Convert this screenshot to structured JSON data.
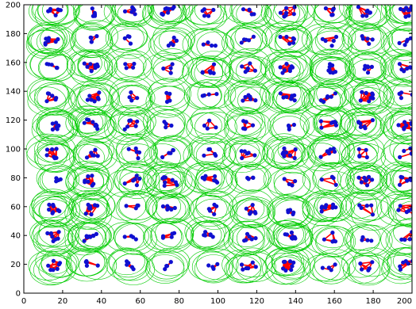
{
  "chart_data": {
    "type": "scatter",
    "title": "",
    "xlabel": "",
    "ylabel": "",
    "xlim": [
      0,
      200
    ],
    "ylim": [
      0,
      200
    ],
    "x_ticks": [
      "0",
      "20",
      "40",
      "60",
      "80",
      "100",
      "120",
      "140",
      "160",
      "180",
      "200"
    ],
    "y_ticks": [
      "0",
      "20",
      "40",
      "60",
      "80",
      "100",
      "120",
      "140",
      "160",
      "180",
      "200"
    ],
    "grid": false,
    "colors": {
      "circles": "#00cc00",
      "edges": "#ff0000",
      "nodes": "#1010d0",
      "axes": "#000000"
    },
    "grid_centers": {
      "x": [
        15,
        35,
        56,
        75,
        96,
        116,
        136,
        157,
        176,
        197
      ],
      "y": [
        195,
        175,
        156,
        136,
        117,
        97,
        78,
        58,
        39,
        19
      ]
    },
    "mark_description_colors_only": true
  }
}
